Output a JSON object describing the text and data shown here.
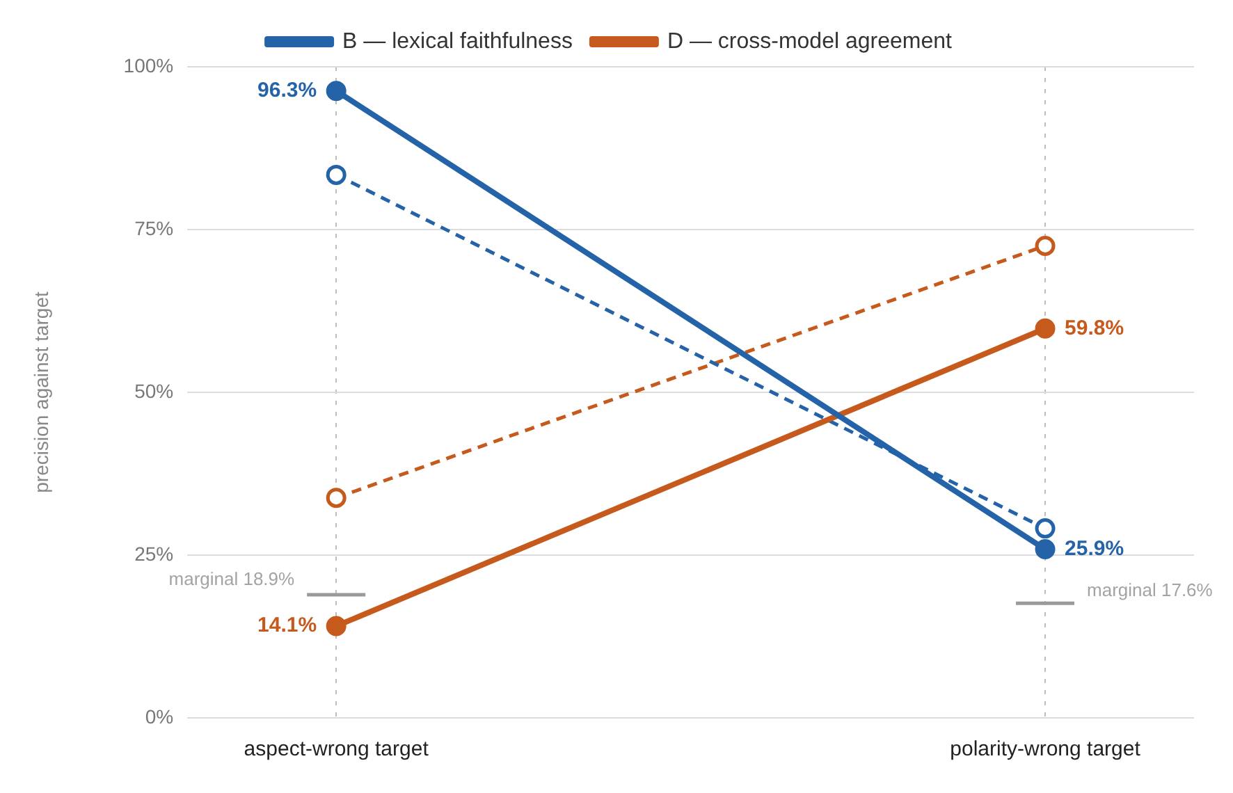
{
  "chart_data": {
    "type": "line",
    "ylabel": "precision against target",
    "categories": [
      "aspect-wrong target",
      "polarity-wrong target"
    ],
    "series": [
      {
        "name": "B — lexical faithfulness",
        "color": "#2563a8",
        "values": [
          96.3,
          25.9
        ],
        "line_style": "solid",
        "value_labels": [
          "96.3%",
          "25.9%"
        ]
      },
      {
        "name": "D — cross-model agreement",
        "color": "#c55a1c",
        "values": [
          14.1,
          59.8
        ],
        "line_style": "solid",
        "value_labels": [
          "14.1%",
          "59.8%"
        ]
      },
      {
        "color": "#2563a8",
        "values": [
          83.4,
          29.1
        ],
        "line_style": "dashed"
      },
      {
        "color": "#c55a1c",
        "values": [
          33.8,
          72.5
        ],
        "line_style": "dashed"
      }
    ],
    "ylim": [
      0,
      100
    ],
    "yticks": [
      {
        "value": 0,
        "label": "0%"
      },
      {
        "value": 25,
        "label": "25%"
      },
      {
        "value": 50,
        "label": "50%"
      },
      {
        "value": 75,
        "label": "75%"
      },
      {
        "value": 100,
        "label": "100%"
      }
    ],
    "grid": true,
    "legend": "top",
    "marker": "circle",
    "ref_lines": [
      {
        "axis": "y",
        "value": 18.9,
        "label": "marginal 18.9%",
        "color": "#9a9a9a"
      },
      {
        "axis": "y",
        "value": 17.6,
        "label": "marginal 17.6%",
        "color": "#9a9a9a"
      }
    ]
  }
}
